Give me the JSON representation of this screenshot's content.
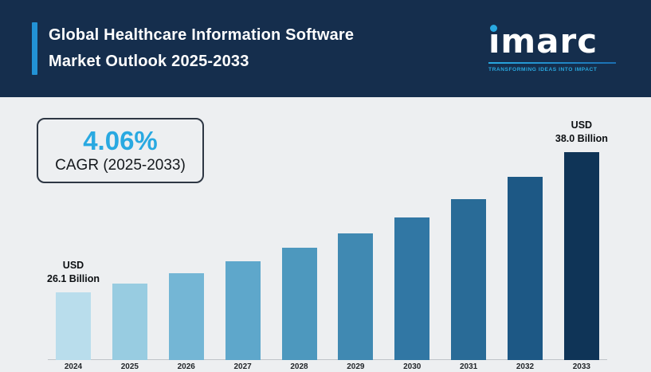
{
  "header": {
    "title_line1": "Global Healthcare Information Software",
    "title_line2": "Market Outlook 2025-2033",
    "logo_text": "imarc",
    "logo_tagline": "TRANSFORMING IDEAS INTO IMPACT"
  },
  "cagr": {
    "value": "4.06%",
    "label": "CAGR (2025-2033)"
  },
  "annotations": {
    "first": {
      "currency": "USD",
      "amount": "26.1 Billion"
    },
    "last": {
      "currency": "USD",
      "amount": "38.0 Billion"
    }
  },
  "chart_data": {
    "type": "bar",
    "title": "Global Healthcare Information Software Market Outlook 2025-2033",
    "unit": "USD Billion",
    "categories": [
      "2024",
      "2025",
      "2026",
      "2027",
      "2028",
      "2029",
      "2030",
      "2031",
      "2032",
      "2033"
    ],
    "values": [
      26.1,
      27.2,
      28.4,
      29.6,
      30.9,
      32.2,
      33.5,
      34.9,
      36.4,
      38.0
    ],
    "labeled_points": {
      "2024": "USD 26.1 Billion",
      "2033": "USD 38.0 Billion"
    },
    "cagr": "4.06%",
    "bar_colors": [
      "#b9ddec",
      "#98cce1",
      "#74b6d5",
      "#5ea7cb",
      "#4d98be",
      "#4089b2",
      "#3177a4",
      "#296b97",
      "#1d5885",
      "#0f3457"
    ],
    "xlabel": "",
    "ylabel": "",
    "ylim": [
      0,
      40
    ],
    "grid": false,
    "legend": false
  },
  "colors": {
    "header_bg": "#152e4d",
    "body_bg": "#edeff1",
    "accent_blue": "#2292d5",
    "cyan": "#29a9e1"
  }
}
